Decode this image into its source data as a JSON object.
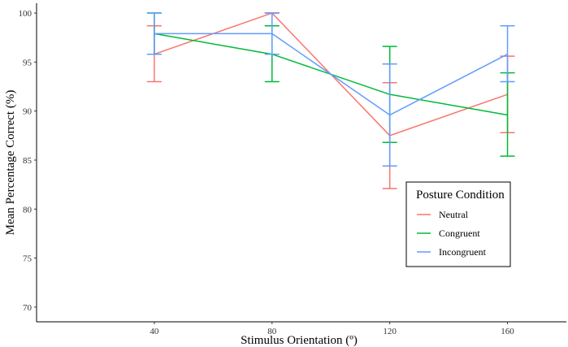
{
  "chart_data": {
    "type": "line",
    "title": "",
    "xlabel": "Stimulus Orientation (º)",
    "ylabel": "Mean Percentage Correct (%)",
    "x": [
      40,
      80,
      120,
      160
    ],
    "x_tick_labels": [
      "40",
      "80",
      "120",
      "160"
    ],
    "y_tick_labels": [
      "70",
      "75",
      "80",
      "85",
      "90",
      "95",
      "100"
    ],
    "xlim": [
      0,
      180
    ],
    "ylim": [
      68.5,
      101
    ],
    "grid": false,
    "legend": {
      "title": "Posture Condition",
      "position": "right"
    },
    "series": [
      {
        "name": "Neutral",
        "color": "#F8766D",
        "values": [
          95.8,
          100.0,
          87.5,
          91.7
        ],
        "err_low": [
          93.0,
          100.0,
          82.1,
          87.8
        ],
        "err_high": [
          98.7,
          100.0,
          92.9,
          95.6
        ]
      },
      {
        "name": "Congruent",
        "color": "#00BA38",
        "values": [
          97.9,
          95.8,
          91.7,
          89.6
        ],
        "err_low": [
          95.8,
          93.0,
          86.8,
          85.4
        ],
        "err_high": [
          100.0,
          98.7,
          96.6,
          93.9
        ]
      },
      {
        "name": "Incongruent",
        "color": "#619CFF",
        "values": [
          97.9,
          97.9,
          89.6,
          95.8
        ],
        "err_low": [
          95.8,
          95.8,
          84.4,
          93.0
        ],
        "err_high": [
          100.0,
          100.0,
          94.8,
          98.7
        ]
      }
    ]
  }
}
